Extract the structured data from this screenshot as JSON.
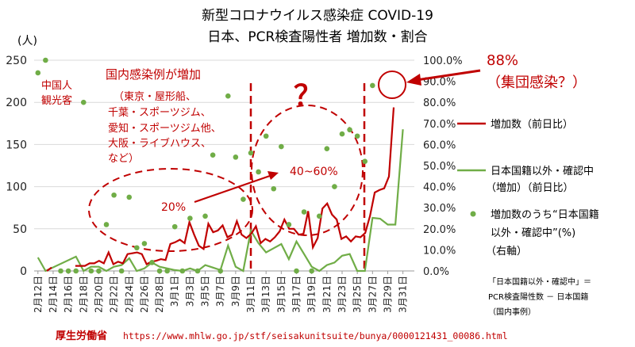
{
  "chart_data": {
    "type": "line",
    "title": "新型コロナウイルス感染症 COVID-19",
    "subtitle": "日本、PCR検査陽性者 増加数・割合",
    "left_axis_unit": "(人)",
    "ylim": [
      0,
      250
    ],
    "y_ticks": [
      "0",
      "50",
      "100",
      "150",
      "200",
      "250"
    ],
    "y2lim": [
      0,
      100
    ],
    "y2_ticks": [
      "0.0%",
      "10.0%",
      "20.0%",
      "30.0%",
      "40.0%",
      "50.0%",
      "60.0%",
      "70.0%",
      "80.0%",
      "90.0%",
      "100.0%"
    ],
    "x_tick_labels": [
      "2月12日",
      "2月14日",
      "2月16日",
      "2月18日",
      "2月20日",
      "2月22日",
      "2月24日",
      "2月26日",
      "2月28日",
      "3月1日",
      "3月3日",
      "3月5日",
      "3月7日",
      "3月9日",
      "3月11日",
      "3月13日",
      "3月15日",
      "3月17日",
      "3月19日",
      "3月21日",
      "3月23日",
      "3月25日",
      "3月27日",
      "3月29日",
      "3月31日"
    ],
    "day_count": 50,
    "series": [
      {
        "name": "増加数（前日比）",
        "color": "#c00000",
        "axis": "left",
        "values": [
          null,
          null,
          0,
          4,
          null,
          null,
          null,
          null,
          6,
          6,
          6,
          9,
          9,
          12,
          9,
          22,
          8,
          11,
          9,
          20,
          21,
          22,
          20,
          8,
          11,
          12,
          14,
          13,
          32,
          34,
          37,
          33,
          58,
          43,
          30,
          26,
          56,
          46,
          48,
          54,
          40,
          43,
          59,
          43,
          39,
          44,
          53,
          33,
          38,
          35,
          40,
          47,
          61,
          50,
          50,
          43,
          44,
          71,
          28,
          39,
          74,
          80,
          67,
          61,
          38,
          41,
          35,
          41,
          40,
          45,
          65,
          93,
          96,
          98,
          112,
          194
        ]
      }
    ],
    "legend": [
      {
        "label_lines": [
          "増加数（前日比）"
        ],
        "symbol": "line",
        "color": "#c00000"
      },
      {
        "label_lines": [
          "日本国籍以外・確認中",
          "（増加）（前日比）"
        ],
        "symbol": "line",
        "color": "#70ad47"
      },
      {
        "label_lines": [
          "増加数のうち“日本国籍",
          "以外・確認中”(%)",
          "（右軸）"
        ],
        "symbol": "dot",
        "color": "#70ad47"
      }
    ],
    "green_line": {
      "name": "日本国籍以外・確認中（増加）（前日比）",
      "color": "#70ad47",
      "axis": "left",
      "points": [
        [
          0,
          16
        ],
        [
          1,
          0
        ],
        [
          5,
          17
        ],
        [
          6,
          0
        ],
        [
          7,
          5
        ],
        [
          8,
          5
        ],
        [
          9,
          0
        ],
        [
          10,
          5
        ],
        [
          11,
          7
        ],
        [
          12,
          15
        ],
        [
          13,
          0
        ],
        [
          14,
          3
        ],
        [
          15,
          10
        ],
        [
          16,
          5
        ],
        [
          17,
          3
        ],
        [
          18,
          1
        ],
        [
          19,
          0
        ],
        [
          20,
          3
        ],
        [
          21,
          0
        ],
        [
          22,
          7
        ],
        [
          23,
          4
        ],
        [
          24,
          1
        ],
        [
          25,
          30
        ],
        [
          26,
          5
        ],
        [
          27,
          0
        ],
        [
          28,
          48
        ],
        [
          29,
          33
        ],
        [
          30,
          22
        ],
        [
          31,
          27
        ],
        [
          32,
          32
        ],
        [
          33,
          14
        ],
        [
          34,
          35
        ],
        [
          35,
          20
        ],
        [
          36,
          5
        ],
        [
          37,
          0
        ],
        [
          38,
          7
        ],
        [
          39,
          10
        ],
        [
          40,
          18
        ],
        [
          41,
          20
        ],
        [
          42,
          0
        ],
        [
          43,
          0
        ],
        [
          44,
          63
        ],
        [
          45,
          62
        ],
        [
          46,
          55
        ],
        [
          47,
          55
        ],
        [
          48,
          168
        ]
      ]
    },
    "green_dots": {
      "name": "増加数のうち“日本国籍以外・確認中”(%)（右軸）",
      "color": "#70ad47",
      "axis": "right",
      "points": [
        [
          0,
          94
        ],
        [
          1,
          100
        ],
        [
          3,
          0
        ],
        [
          4,
          0
        ],
        [
          5,
          0
        ],
        [
          6,
          80
        ],
        [
          7,
          0
        ],
        [
          8,
          0
        ],
        [
          9,
          22
        ],
        [
          10,
          36
        ],
        [
          11,
          0
        ],
        [
          12,
          35
        ],
        [
          13,
          11
        ],
        [
          14,
          13
        ],
        [
          15,
          4
        ],
        [
          16,
          0
        ],
        [
          17,
          0
        ],
        [
          18,
          21
        ],
        [
          19,
          0
        ],
        [
          20,
          25
        ],
        [
          21,
          0
        ],
        [
          22,
          26
        ],
        [
          23,
          55
        ],
        [
          24,
          0
        ],
        [
          25,
          83
        ],
        [
          26,
          54
        ],
        [
          27,
          34
        ],
        [
          28,
          56
        ],
        [
          29,
          47
        ],
        [
          30,
          64
        ],
        [
          31,
          39
        ],
        [
          32,
          59
        ],
        [
          33,
          22
        ],
        [
          34,
          0
        ],
        [
          35,
          28
        ],
        [
          36,
          0
        ],
        [
          37,
          26
        ],
        [
          38,
          58
        ],
        [
          39,
          40
        ],
        [
          40,
          65
        ],
        [
          41,
          67
        ],
        [
          42,
          64
        ],
        [
          43,
          52
        ],
        [
          44,
          88
        ]
      ]
    },
    "annotations": {
      "tourists": [
        "中国人",
        "観光客"
      ],
      "domestic_title": "国内感染例が増加",
      "domestic_detail": [
        "（東京・屋形船、",
        "千葉・スポーツジム、",
        "愛知・スポーツジム他、",
        "大阪・ライブハウス、",
        "など）"
      ],
      "pct_20": "20%",
      "pct_40_60": "40~60%",
      "question": "？",
      "pct_88": "88%",
      "cluster": "（集団感染？）",
      "note": [
        "「日本国籍以外・確認中」＝",
        "PCR検査陽性数 － 日本国籍",
        "（国内事例）"
      ],
      "source_label": "厚生労働省",
      "source_url": "https://www.mhlw.go.jp/stf/seisakunitsuite/bunya/0000121431_00086.html"
    }
  }
}
